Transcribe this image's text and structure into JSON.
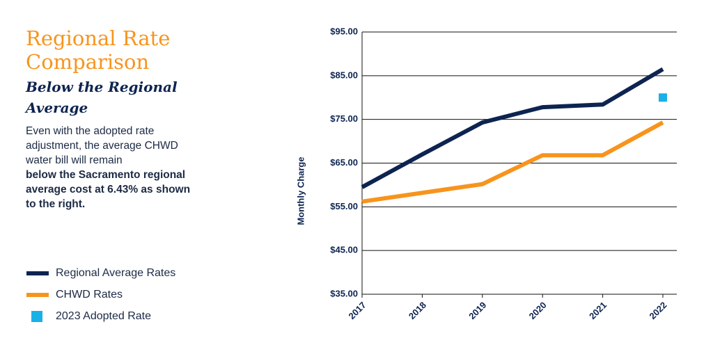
{
  "header": {
    "title": "Regional Rate Comparison",
    "subtitle": "Below the Regional Average",
    "body": "Even with the adopted rate adjustment, the average CHWD water bill will remain",
    "body_bold": "below the Sacramento regional average cost at 6.43% as shown to the right."
  },
  "chart_data": {
    "type": "line",
    "y_label": "Monthly Charge",
    "categories": [
      "2017",
      "2018",
      "2019",
      "2020",
      "2021",
      "2022"
    ],
    "ylim": [
      35,
      95
    ],
    "yticks": [
      {
        "value": 35,
        "label": "$35.00"
      },
      {
        "value": 45,
        "label": "$45.00"
      },
      {
        "value": 55,
        "label": "$55.00"
      },
      {
        "value": 65,
        "label": "$65.00"
      },
      {
        "value": 75,
        "label": "$75.00"
      },
      {
        "value": 85,
        "label": "$85.00"
      },
      {
        "value": 95,
        "label": "$95.00"
      }
    ],
    "grid": true,
    "legend": "bottom-left",
    "series": [
      {
        "name": "Regional Average Rates",
        "color": "#0d2451",
        "values": [
          59.5,
          67,
          74.3,
          77.8,
          78.4,
          86.5
        ]
      },
      {
        "name": "CHWD Rates",
        "color": "#f7941d",
        "values": [
          56.2,
          58.2,
          60.2,
          66.8,
          66.8,
          74.3
        ]
      },
      {
        "name": "2023 Adopted Rate",
        "color": "#1ab0e8",
        "marker": "square",
        "values": [
          null,
          null,
          null,
          null,
          null,
          80
        ]
      }
    ]
  }
}
